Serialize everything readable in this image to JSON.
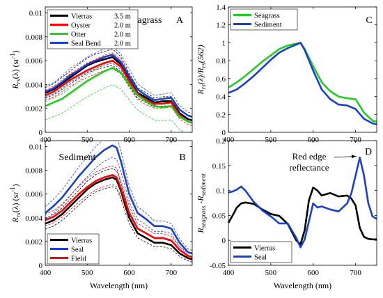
{
  "chart_data": [
    {
      "type": "line",
      "title": "Seagrass",
      "panel_letter": "A",
      "xlabel": "",
      "ylabel": "R_rs(λ) (sr^-1)",
      "xlim": [
        400,
        750
      ],
      "ylim": [
        0,
        0.0105
      ],
      "xticks": [
        400,
        500,
        600,
        700
      ],
      "xtick_labels": [
        "400",
        "500",
        "600",
        "700"
      ],
      "yticks": [
        0,
        0.002,
        0.004,
        0.006,
        0.008,
        0.01
      ],
      "ytick_labels": [
        "0",
        "0.002",
        "0.004",
        "0.006",
        "0.008",
        "0.01"
      ],
      "legend_position": "top-left",
      "grid": false,
      "series": [
        {
          "name": "Vierras",
          "depth": "3.5 m",
          "color": "#000000",
          "x": [
            400,
            420,
            440,
            460,
            480,
            500,
            520,
            540,
            560,
            580,
            600,
            620,
            640,
            660,
            680,
            700,
            720,
            740,
            750
          ],
          "y": [
            0.0033,
            0.0036,
            0.0041,
            0.0046,
            0.0051,
            0.0056,
            0.0059,
            0.0061,
            0.0063,
            0.0057,
            0.0044,
            0.0033,
            0.0029,
            0.0025,
            0.0026,
            0.0026,
            0.0016,
            0.0011,
            0.001
          ]
        },
        {
          "name": "Oyster",
          "depth": "2.0 m",
          "color": "#ff0000",
          "x": [
            400,
            420,
            440,
            460,
            480,
            500,
            520,
            540,
            560,
            580,
            600,
            620,
            640,
            660,
            680,
            700,
            720,
            740,
            750
          ],
          "y": [
            0.0031,
            0.0034,
            0.0039,
            0.0044,
            0.0048,
            0.0052,
            0.0055,
            0.0058,
            0.006,
            0.0055,
            0.0043,
            0.0032,
            0.0027,
            0.0024,
            0.0024,
            0.0025,
            0.0014,
            0.0009,
            0.0008
          ]
        },
        {
          "name": "Otter",
          "depth": "2.0 m",
          "color": "#22cc22",
          "x": [
            400,
            420,
            440,
            460,
            480,
            500,
            520,
            540,
            560,
            580,
            600,
            620,
            640,
            660,
            680,
            700,
            720,
            740,
            750
          ],
          "y": [
            0.0022,
            0.0025,
            0.0028,
            0.0033,
            0.0038,
            0.0043,
            0.0047,
            0.0051,
            0.0054,
            0.005,
            0.004,
            0.0031,
            0.0026,
            0.0022,
            0.0021,
            0.0022,
            0.0013,
            0.0009,
            0.0008
          ]
        },
        {
          "name": "Seal Bend",
          "depth": "2.0 m",
          "color": "#1a3fcc",
          "x": [
            400,
            420,
            440,
            460,
            480,
            500,
            520,
            540,
            560,
            580,
            600,
            620,
            640,
            660,
            680,
            700,
            720,
            740,
            750
          ],
          "y": [
            0.0034,
            0.0037,
            0.0042,
            0.0048,
            0.0052,
            0.0057,
            0.006,
            0.0063,
            0.0065,
            0.0059,
            0.0047,
            0.0036,
            0.0031,
            0.0027,
            0.0028,
            0.0029,
            0.0019,
            0.0014,
            0.0013
          ]
        }
      ]
    },
    {
      "type": "line",
      "title": "",
      "panel_letter": "C",
      "xlabel": "",
      "ylabel": "R_rs(λ)/R_rs(562)",
      "xlim": [
        400,
        750
      ],
      "ylim": [
        0,
        1.4
      ],
      "xticks": [
        400,
        500,
        600,
        700
      ],
      "xtick_labels": [
        "400",
        "500",
        "600",
        "700"
      ],
      "yticks": [
        0,
        0.2,
        0.4,
        0.6,
        0.8,
        1.0,
        1.2,
        1.4
      ],
      "ytick_labels": [
        "0",
        "0.2",
        "0.4",
        "0.6",
        "0.8",
        "1",
        "1.2",
        "1.4"
      ],
      "legend_position": "top-left",
      "grid": false,
      "series": [
        {
          "name": "Seagrass",
          "color": "#22cc22",
          "x": [
            400,
            420,
            440,
            460,
            480,
            500,
            520,
            540,
            560,
            570,
            580,
            600,
            620,
            640,
            660,
            680,
            700,
            720,
            740,
            750
          ],
          "y": [
            0.5,
            0.56,
            0.63,
            0.71,
            0.79,
            0.86,
            0.93,
            0.97,
            0.99,
            1.0,
            0.93,
            0.74,
            0.56,
            0.46,
            0.4,
            0.38,
            0.37,
            0.22,
            0.13,
            0.12
          ]
        },
        {
          "name": "Sediment",
          "color": "#1a3fcc",
          "x": [
            400,
            420,
            440,
            460,
            480,
            500,
            520,
            540,
            560,
            570,
            580,
            600,
            620,
            640,
            660,
            680,
            700,
            720,
            740,
            750
          ],
          "y": [
            0.44,
            0.48,
            0.55,
            0.63,
            0.72,
            0.81,
            0.89,
            0.94,
            0.98,
            1.0,
            0.92,
            0.69,
            0.48,
            0.37,
            0.31,
            0.3,
            0.26,
            0.15,
            0.1,
            0.09
          ]
        }
      ]
    },
    {
      "type": "line",
      "title": "Sediment",
      "panel_letter": "B",
      "xlabel": "Wavelength (nm)",
      "ylabel": "R_rs(λ) (sr^-1)",
      "xlim": [
        400,
        750
      ],
      "ylim": [
        0,
        0.0105
      ],
      "xticks": [
        400,
        500,
        600,
        700
      ],
      "xtick_labels": [
        "400",
        "500",
        "600",
        "700"
      ],
      "yticks": [
        0,
        0.002,
        0.004,
        0.006,
        0.008,
        0.01
      ],
      "ytick_labels": [
        "0",
        "0.002",
        "0.004",
        "0.006",
        "0.008",
        "0.01"
      ],
      "legend_position": "bottom-left",
      "grid": false,
      "series": [
        {
          "name": "Vierras",
          "color": "#000000",
          "x": [
            400,
            420,
            440,
            460,
            480,
            500,
            520,
            540,
            560,
            570,
            580,
            600,
            620,
            640,
            660,
            680,
            700,
            720,
            740,
            750
          ],
          "y": [
            0.0035,
            0.0038,
            0.0043,
            0.005,
            0.0057,
            0.0064,
            0.0069,
            0.0072,
            0.0074,
            0.0072,
            0.0063,
            0.004,
            0.0027,
            0.0023,
            0.0019,
            0.0019,
            0.0017,
            0.001,
            0.0006,
            0.0005
          ]
        },
        {
          "name": "Seal",
          "color": "#1a3fcc",
          "x": [
            400,
            420,
            440,
            460,
            480,
            500,
            520,
            540,
            560,
            570,
            580,
            600,
            620,
            640,
            660,
            680,
            700,
            720,
            740,
            750
          ],
          "y": [
            0.0044,
            0.005,
            0.0057,
            0.0066,
            0.0075,
            0.0083,
            0.0091,
            0.0097,
            0.0101,
            0.0099,
            0.0088,
            0.006,
            0.0044,
            0.0039,
            0.0033,
            0.0033,
            0.0031,
            0.0019,
            0.0011,
            0.001
          ]
        },
        {
          "name": "Field",
          "color": "#ff0000",
          "x": [
            400,
            420,
            440,
            460,
            480,
            500,
            520,
            540,
            560,
            570,
            580,
            600,
            620,
            640,
            660,
            680,
            700,
            720,
            740,
            750
          ],
          "y": [
            0.0038,
            0.0041,
            0.0046,
            0.0053,
            0.006,
            0.0066,
            0.0071,
            0.0074,
            0.0076,
            0.0074,
            0.0065,
            0.0044,
            0.0031,
            0.0027,
            0.0023,
            0.0023,
            0.0021,
            0.0013,
            0.0008,
            0.0007
          ]
        }
      ]
    },
    {
      "type": "line",
      "title": "",
      "panel_letter": "D",
      "xlabel": "Wavelength (nm)",
      "ylabel": "R_seagrass - R_sediment",
      "xlim": [
        400,
        750
      ],
      "ylim": [
        -0.05,
        0.2
      ],
      "xticks": [
        400,
        500,
        600,
        700
      ],
      "xtick_labels": [
        "400",
        "500",
        "600",
        "700"
      ],
      "yticks": [
        -0.05,
        0,
        0.05,
        0.1,
        0.15,
        0.2
      ],
      "ytick_labels": [
        "-0.05",
        "0",
        "0.05",
        "0.1",
        "0.15",
        "0.2"
      ],
      "legend_position": "bottom-left",
      "grid": false,
      "annotation": {
        "text_line1": "Red edge",
        "text_line2": "reflectance",
        "points_to_x": 705,
        "points_to_y": 0.163
      },
      "series": [
        {
          "name": "Vierras",
          "color": "#000000",
          "x": [
            400,
            410,
            420,
            430,
            440,
            460,
            480,
            500,
            520,
            540,
            560,
            570,
            580,
            590,
            600,
            610,
            620,
            640,
            660,
            680,
            690,
            700,
            710,
            720,
            730,
            740,
            750
          ],
          "y": [
            0.035,
            0.05,
            0.066,
            0.074,
            0.076,
            0.073,
            0.062,
            0.053,
            0.049,
            0.033,
            0.0,
            -0.008,
            0.02,
            0.08,
            0.106,
            0.1,
            0.09,
            0.095,
            0.088,
            0.09,
            0.084,
            0.07,
            0.025,
            0.007,
            0.003,
            0.002,
            0.002
          ]
        },
        {
          "name": "Seal",
          "color": "#1a3fcc",
          "x": [
            400,
            410,
            420,
            430,
            440,
            460,
            480,
            500,
            520,
            540,
            560,
            570,
            580,
            590,
            600,
            610,
            620,
            640,
            660,
            680,
            690,
            700,
            710,
            720,
            730,
            740,
            750
          ],
          "y": [
            0.096,
            0.098,
            0.102,
            0.108,
            0.1,
            0.077,
            0.06,
            0.048,
            0.034,
            0.034,
            0.005,
            -0.014,
            0.002,
            0.038,
            0.074,
            0.066,
            0.068,
            0.062,
            0.058,
            0.074,
            0.094,
            0.13,
            0.166,
            0.13,
            0.075,
            0.048,
            0.043
          ]
        }
      ]
    }
  ]
}
